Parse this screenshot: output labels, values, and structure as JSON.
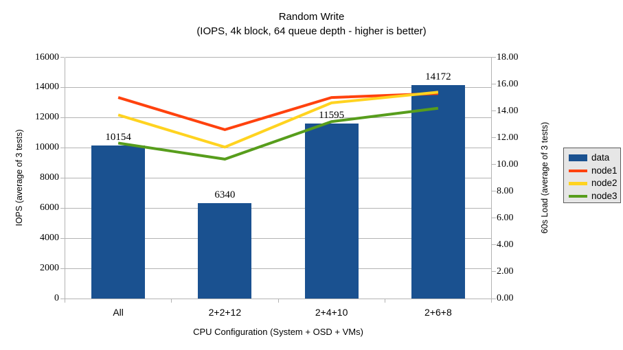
{
  "title": "Random Write",
  "subtitle": "(IOPS, 4k block, 64 queue depth - higher is better)",
  "colors": {
    "data": "#1a5190",
    "node1": "#ff420e",
    "node2": "#ffd320",
    "node3": "#579d1c",
    "grid": "#b3b3b3",
    "axis": "#b3b3b3",
    "text": "#000000",
    "legend_bg": "#e6e6e6",
    "legend_border": "#5a5a5a"
  },
  "chart_data": {
    "type": "bar",
    "title": "Random Write",
    "subtitle": "(IOPS, 4k block, 64 queue depth - higher is better)",
    "categories": [
      "All",
      "2+2+12",
      "2+4+10",
      "2+6+8"
    ],
    "bar_series": {
      "name": "data",
      "axis": "left",
      "color_key": "data",
      "values": [
        10154,
        6340,
        11595,
        14172
      ],
      "data_labels": [
        "10154",
        "6340",
        "11595",
        "14172"
      ]
    },
    "line_series": [
      {
        "name": "node1",
        "axis": "right",
        "color_key": "node1",
        "values": [
          15.0,
          12.6,
          15.0,
          15.3
        ]
      },
      {
        "name": "node2",
        "axis": "right",
        "color_key": "node2",
        "values": [
          13.7,
          11.3,
          14.6,
          15.4
        ]
      },
      {
        "name": "node3",
        "axis": "right",
        "color_key": "node3",
        "values": [
          11.6,
          10.4,
          13.2,
          14.2
        ]
      }
    ],
    "xlabel": "CPU Configuration (System + OSD + VMs)",
    "ylabel_left": "IOPS (average of 3 tests)",
    "ylabel_right": "60s Load (average of 3 tests)",
    "left_axis": {
      "min": 0,
      "max": 16000,
      "step": 2000,
      "labels": [
        "0",
        "2000",
        "4000",
        "6000",
        "8000",
        "10000",
        "12000",
        "14000",
        "16000"
      ]
    },
    "right_axis": {
      "min": 0,
      "max": 18,
      "step": 2,
      "labels": [
        "0.00",
        "2.00",
        "4.00",
        "6.00",
        "8.00",
        "10.00",
        "12.00",
        "14.00",
        "16.00",
        "18.00"
      ]
    },
    "grid": "horizontal",
    "legend_position": "right"
  },
  "legend": {
    "items": [
      {
        "label": "data",
        "type": "bar",
        "color_key": "data"
      },
      {
        "label": "node1",
        "type": "line",
        "color_key": "node1"
      },
      {
        "label": "node2",
        "type": "line",
        "color_key": "node2"
      },
      {
        "label": "node3",
        "type": "line",
        "color_key": "node3"
      }
    ]
  }
}
